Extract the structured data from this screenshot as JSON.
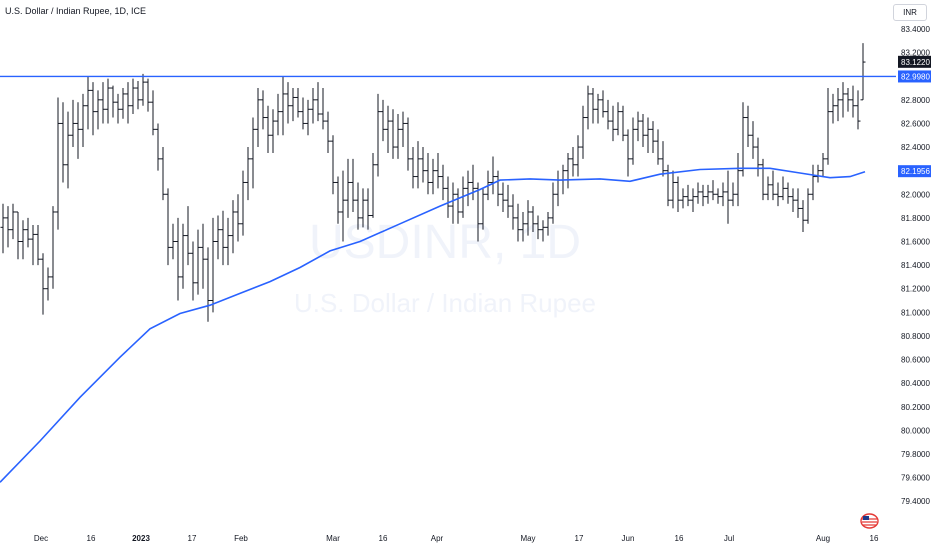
{
  "header": {
    "title": "U.S. Dollar / Indian Rupee, 1D, ICE"
  },
  "currency_button": "INR",
  "watermark": {
    "symbol": "USDINR, 1D",
    "name": "U.S. Dollar / Indian Rupee"
  },
  "colors": {
    "bars": "#131722",
    "ma_line": "#2962ff",
    "hline": "#2962ff",
    "axis_text": "#131722",
    "watermark": "#f0f3fa",
    "last_price_bg": "#131722",
    "level_bg": "#2962ff"
  },
  "chart_data": {
    "type": "ohlc",
    "title": "U.S. Dollar / Indian Rupee, 1D, ICE",
    "ylim": [
      79.3,
      83.4
    ],
    "y_ticks": [
      "83.4000",
      "83.2000",
      "82.8000",
      "82.6000",
      "82.4000",
      "82.2000",
      "82.0000",
      "81.8000",
      "81.6000",
      "81.4000",
      "81.2000",
      "81.0000",
      "80.8000",
      "80.6000",
      "80.4000",
      "80.2000",
      "80.0000",
      "79.8000",
      "79.6000",
      "79.4000"
    ],
    "x_ticks": [
      {
        "label": "Dec",
        "pos": 41
      },
      {
        "label": "16",
        "pos": 91
      },
      {
        "label": "2023",
        "pos": 141,
        "bold": true
      },
      {
        "label": "17",
        "pos": 192
      },
      {
        "label": "Feb",
        "pos": 241
      },
      {
        "label": "Mar",
        "pos": 333
      },
      {
        "label": "16",
        "pos": 383
      },
      {
        "label": "Apr",
        "pos": 437
      },
      {
        "label": "May",
        "pos": 528
      },
      {
        "label": "17",
        "pos": 579
      },
      {
        "label": "Jun",
        "pos": 628
      },
      {
        "label": "16",
        "pos": 679
      },
      {
        "label": "Jul",
        "pos": 729
      },
      {
        "label": "Aug",
        "pos": 823
      },
      {
        "label": "16",
        "pos": 874
      }
    ],
    "price_labels": [
      {
        "value": 83.122,
        "text": "83.1220",
        "style": "last"
      },
      {
        "value": 82.998,
        "text": "82.9980",
        "style": "level"
      },
      {
        "value": 82.1956,
        "text": "82.1956",
        "style": "ma"
      }
    ],
    "horizontal_level": 82.998,
    "ma_line": [
      [
        0,
        79.56
      ],
      [
        40,
        79.91
      ],
      [
        80,
        80.28
      ],
      [
        120,
        80.62
      ],
      [
        150,
        80.86
      ],
      [
        180,
        80.99
      ],
      [
        210,
        81.06
      ],
      [
        240,
        81.16
      ],
      [
        270,
        81.26
      ],
      [
        300,
        81.38
      ],
      [
        330,
        81.52
      ],
      [
        360,
        81.6
      ],
      [
        400,
        81.75
      ],
      [
        440,
        81.9
      ],
      [
        480,
        82.04
      ],
      [
        500,
        82.12
      ],
      [
        530,
        82.13
      ],
      [
        560,
        82.12
      ],
      [
        600,
        82.13
      ],
      [
        630,
        82.11
      ],
      [
        660,
        82.17
      ],
      [
        700,
        82.21
      ],
      [
        740,
        82.22
      ],
      [
        770,
        82.22
      ],
      [
        800,
        82.18
      ],
      [
        830,
        82.14
      ],
      [
        850,
        82.15
      ],
      [
        865,
        82.19
      ]
    ],
    "ohlc_bars": [
      [
        3,
        81.72,
        81.92,
        81.5,
        81.8
      ],
      [
        8,
        81.8,
        81.9,
        81.55,
        81.7
      ],
      [
        13,
        81.7,
        81.92,
        81.62,
        81.85
      ],
      [
        18,
        81.85,
        81.85,
        81.45,
        81.6
      ],
      [
        23,
        81.6,
        81.78,
        81.45,
        81.7
      ],
      [
        28,
        81.7,
        81.8,
        81.55,
        81.62
      ],
      [
        33,
        81.62,
        81.74,
        81.4,
        81.66
      ],
      [
        38,
        81.66,
        81.74,
        81.4,
        81.45
      ],
      [
        43,
        81.45,
        81.5,
        80.98,
        81.2
      ],
      [
        48,
        81.2,
        81.38,
        81.1,
        81.3
      ],
      [
        53,
        81.3,
        81.9,
        81.2,
        81.85
      ],
      [
        58,
        81.85,
        82.82,
        81.7,
        82.6
      ],
      [
        63,
        82.6,
        82.78,
        82.1,
        82.25
      ],
      [
        68,
        82.25,
        82.7,
        82.05,
        82.5
      ],
      [
        73,
        82.5,
        82.8,
        82.4,
        82.6
      ],
      [
        78,
        82.6,
        82.78,
        82.3,
        82.55
      ],
      [
        83,
        82.55,
        82.85,
        82.4,
        82.75
      ],
      [
        88,
        82.75,
        83.0,
        82.55,
        82.88
      ],
      [
        93,
        82.88,
        82.95,
        82.5,
        82.7
      ],
      [
        98,
        82.7,
        82.88,
        82.55,
        82.8
      ],
      [
        103,
        82.8,
        82.95,
        82.6,
        82.72
      ],
      [
        108,
        82.72,
        82.98,
        82.6,
        82.9
      ],
      [
        113,
        82.9,
        82.92,
        82.65,
        82.78
      ],
      [
        118,
        82.78,
        82.85,
        82.6,
        82.72
      ],
      [
        123,
        82.72,
        82.9,
        82.64,
        82.85
      ],
      [
        128,
        82.85,
        82.95,
        82.6,
        82.75
      ],
      [
        133,
        82.75,
        82.98,
        82.68,
        82.9
      ],
      [
        138,
        82.9,
        82.96,
        82.72,
        82.8
      ],
      [
        143,
        82.8,
        83.02,
        82.75,
        82.95
      ],
      [
        148,
        82.95,
        82.98,
        82.7,
        82.78
      ],
      [
        153,
        82.78,
        82.88,
        82.5,
        82.55
      ],
      [
        158,
        82.55,
        82.6,
        82.2,
        82.3
      ],
      [
        163,
        82.3,
        82.4,
        81.95,
        82.0
      ],
      [
        168,
        82.0,
        82.05,
        81.4,
        81.55
      ],
      [
        173,
        81.55,
        81.75,
        81.45,
        81.6
      ],
      [
        178,
        81.6,
        81.8,
        81.1,
        81.3
      ],
      [
        183,
        81.3,
        81.75,
        81.2,
        81.65
      ],
      [
        188,
        81.65,
        81.9,
        81.4,
        81.5
      ],
      [
        193,
        81.5,
        81.6,
        81.1,
        81.25
      ],
      [
        198,
        81.25,
        81.7,
        81.15,
        81.55
      ],
      [
        203,
        81.55,
        81.75,
        81.2,
        81.45
      ],
      [
        208,
        81.45,
        81.55,
        80.92,
        81.1
      ],
      [
        213,
        81.1,
        81.8,
        81.0,
        81.6
      ],
      [
        218,
        81.6,
        81.82,
        81.45,
        81.7
      ],
      [
        223,
        81.7,
        81.86,
        81.4,
        81.55
      ],
      [
        228,
        81.55,
        81.8,
        81.4,
        81.65
      ],
      [
        233,
        81.65,
        81.95,
        81.5,
        81.85
      ],
      [
        238,
        81.85,
        82.0,
        81.6,
        81.75
      ],
      [
        243,
        81.75,
        82.2,
        81.65,
        82.1
      ],
      [
        248,
        82.1,
        82.4,
        81.95,
        82.3
      ],
      [
        253,
        82.3,
        82.65,
        82.05,
        82.55
      ],
      [
        258,
        82.55,
        82.9,
        82.4,
        82.8
      ],
      [
        263,
        82.8,
        82.88,
        82.55,
        82.65
      ],
      [
        268,
        82.65,
        82.75,
        82.35,
        82.5
      ],
      [
        273,
        82.5,
        82.72,
        82.35,
        82.62
      ],
      [
        278,
        82.62,
        82.85,
        82.5,
        82.7
      ],
      [
        283,
        82.7,
        83.0,
        82.5,
        82.85
      ],
      [
        288,
        82.85,
        82.95,
        82.6,
        82.75
      ],
      [
        293,
        82.75,
        82.9,
        82.62,
        82.82
      ],
      [
        298,
        82.82,
        82.9,
        82.65,
        82.7
      ],
      [
        303,
        82.7,
        82.82,
        82.55,
        82.6
      ],
      [
        308,
        82.6,
        82.8,
        82.5,
        82.72
      ],
      [
        313,
        82.72,
        82.9,
        82.6,
        82.8
      ],
      [
        318,
        82.8,
        82.95,
        82.62,
        82.68
      ],
      [
        323,
        82.68,
        82.9,
        82.55,
        82.62
      ],
      [
        328,
        82.62,
        82.7,
        82.35,
        82.45
      ],
      [
        333,
        82.45,
        82.5,
        82.0,
        82.1
      ],
      [
        338,
        82.1,
        82.15,
        81.75,
        81.85
      ],
      [
        343,
        81.85,
        82.2,
        81.6,
        81.95
      ],
      [
        348,
        81.95,
        82.3,
        81.8,
        82.1
      ],
      [
        353,
        82.1,
        82.3,
        81.85,
        81.95
      ],
      [
        358,
        81.95,
        82.1,
        81.7,
        81.8
      ],
      [
        363,
        81.8,
        82.05,
        81.72,
        81.95
      ],
      [
        368,
        81.95,
        82.05,
        81.7,
        81.82
      ],
      [
        373,
        81.82,
        82.35,
        81.8,
        82.25
      ],
      [
        378,
        82.25,
        82.85,
        82.15,
        82.7
      ],
      [
        383,
        82.7,
        82.8,
        82.45,
        82.55
      ],
      [
        388,
        82.55,
        82.75,
        82.35,
        82.62
      ],
      [
        393,
        82.62,
        82.72,
        82.3,
        82.4
      ],
      [
        398,
        82.4,
        82.68,
        82.3,
        82.55
      ],
      [
        403,
        82.55,
        82.7,
        82.4,
        82.6
      ],
      [
        408,
        82.6,
        82.65,
        82.2,
        82.3
      ],
      [
        413,
        82.3,
        82.4,
        82.05,
        82.15
      ],
      [
        418,
        82.15,
        82.45,
        82.05,
        82.3
      ],
      [
        423,
        82.3,
        82.4,
        82.1,
        82.2
      ],
      [
        428,
        82.2,
        82.35,
        82.0,
        82.1
      ],
      [
        433,
        82.1,
        82.3,
        82.0,
        82.2
      ],
      [
        438,
        82.2,
        82.35,
        82.05,
        82.15
      ],
      [
        443,
        82.15,
        82.25,
        81.95,
        82.05
      ],
      [
        448,
        82.05,
        82.15,
        81.8,
        81.9
      ],
      [
        453,
        81.9,
        82.1,
        81.75,
        82.0
      ],
      [
        458,
        82.0,
        82.05,
        81.75,
        81.85
      ],
      [
        463,
        81.85,
        82.15,
        81.8,
        82.05
      ],
      [
        468,
        82.05,
        82.2,
        81.9,
        82.1
      ],
      [
        473,
        82.1,
        82.25,
        81.95,
        82.05
      ],
      [
        478,
        82.05,
        82.1,
        81.6,
        81.75
      ],
      [
        483,
        81.75,
        82.05,
        81.7,
        82.0
      ],
      [
        488,
        82.0,
        82.2,
        81.95,
        82.1
      ],
      [
        493,
        82.1,
        82.32,
        82.0,
        82.15
      ],
      [
        498,
        82.15,
        82.2,
        81.9,
        82.0
      ],
      [
        503,
        82.0,
        82.1,
        81.85,
        81.95
      ],
      [
        508,
        81.95,
        82.08,
        81.8,
        81.9
      ],
      [
        513,
        81.9,
        82.0,
        81.7,
        81.8
      ],
      [
        518,
        81.8,
        81.92,
        81.6,
        81.7
      ],
      [
        523,
        81.7,
        81.85,
        81.6,
        81.75
      ],
      [
        528,
        81.75,
        81.95,
        81.65,
        81.85
      ],
      [
        533,
        81.85,
        81.9,
        81.68,
        81.75
      ],
      [
        538,
        81.75,
        81.82,
        81.62,
        81.7
      ],
      [
        543,
        81.7,
        81.78,
        81.6,
        81.72
      ],
      [
        548,
        81.72,
        81.85,
        81.65,
        81.8
      ],
      [
        553,
        81.8,
        82.1,
        81.75,
        82.0
      ],
      [
        558,
        82.0,
        82.2,
        81.9,
        82.12
      ],
      [
        563,
        82.12,
        82.25,
        82.0,
        82.2
      ],
      [
        568,
        82.2,
        82.35,
        82.05,
        82.3
      ],
      [
        573,
        82.3,
        82.4,
        82.15,
        82.25
      ],
      [
        578,
        82.25,
        82.5,
        82.15,
        82.4
      ],
      [
        583,
        82.4,
        82.75,
        82.3,
        82.65
      ],
      [
        588,
        82.65,
        82.92,
        82.55,
        82.85
      ],
      [
        593,
        82.85,
        82.9,
        82.6,
        82.72
      ],
      [
        598,
        82.72,
        82.85,
        82.6,
        82.8
      ],
      [
        603,
        82.8,
        82.88,
        82.65,
        82.7
      ],
      [
        608,
        82.7,
        82.8,
        82.55,
        82.62
      ],
      [
        613,
        82.62,
        82.75,
        82.45,
        82.55
      ],
      [
        618,
        82.55,
        82.78,
        82.5,
        82.7
      ],
      [
        623,
        82.7,
        82.75,
        82.45,
        82.5
      ],
      [
        628,
        82.5,
        82.55,
        82.15,
        82.3
      ],
      [
        633,
        82.3,
        82.65,
        82.25,
        82.55
      ],
      [
        638,
        82.55,
        82.7,
        82.45,
        82.62
      ],
      [
        643,
        82.62,
        82.68,
        82.4,
        82.5
      ],
      [
        648,
        82.5,
        82.65,
        82.35,
        82.55
      ],
      [
        653,
        82.55,
        82.62,
        82.35,
        82.45
      ],
      [
        658,
        82.45,
        82.55,
        82.25,
        82.3
      ],
      [
        663,
        82.3,
        82.45,
        82.15,
        82.2
      ],
      [
        668,
        82.2,
        82.25,
        81.9,
        81.95
      ],
      [
        673,
        81.95,
        82.2,
        81.88,
        82.1
      ],
      [
        678,
        82.1,
        82.15,
        81.85,
        81.95
      ],
      [
        683,
        81.95,
        82.05,
        81.88,
        81.98
      ],
      [
        688,
        81.98,
        82.08,
        81.9,
        81.95
      ],
      [
        693,
        81.95,
        82.05,
        81.85,
        81.98
      ],
      [
        698,
        81.98,
        82.1,
        81.92,
        82.02
      ],
      [
        703,
        82.02,
        82.08,
        81.9,
        81.98
      ],
      [
        708,
        81.98,
        82.08,
        81.92,
        82.02
      ],
      [
        713,
        82.02,
        82.12,
        81.95,
        82.0
      ],
      [
        718,
        82.0,
        82.05,
        81.92,
        81.98
      ],
      [
        723,
        81.98,
        82.1,
        81.9,
        82.02
      ],
      [
        728,
        82.02,
        82.2,
        81.75,
        81.95
      ],
      [
        733,
        81.95,
        82.1,
        81.9,
        82.0
      ],
      [
        738,
        82.0,
        82.35,
        81.9,
        82.2
      ],
      [
        743,
        82.2,
        82.78,
        82.15,
        82.65
      ],
      [
        748,
        82.65,
        82.75,
        82.4,
        82.5
      ],
      [
        753,
        82.5,
        82.62,
        82.3,
        82.4
      ],
      [
        758,
        82.4,
        82.48,
        82.15,
        82.25
      ],
      [
        763,
        82.25,
        82.3,
        81.95,
        82.0
      ],
      [
        768,
        82.0,
        82.15,
        81.95,
        82.08
      ],
      [
        773,
        82.08,
        82.2,
        81.95,
        82.0
      ],
      [
        778,
        82.0,
        82.1,
        81.9,
        81.98
      ],
      [
        783,
        81.98,
        82.15,
        81.95,
        82.05
      ],
      [
        788,
        82.05,
        82.1,
        81.92,
        81.98
      ],
      [
        793,
        81.98,
        82.05,
        81.85,
        81.95
      ],
      [
        798,
        81.95,
        82.05,
        81.8,
        81.88
      ],
      [
        803,
        81.88,
        81.95,
        81.68,
        81.78
      ],
      [
        808,
        81.78,
        82.05,
        81.75,
        82.0
      ],
      [
        813,
        82.0,
        82.25,
        81.95,
        82.15
      ],
      [
        818,
        82.15,
        82.25,
        82.1,
        82.2
      ],
      [
        823,
        82.2,
        82.35,
        82.15,
        82.3
      ],
      [
        828,
        82.3,
        82.9,
        82.25,
        82.7
      ],
      [
        833,
        82.7,
        82.85,
        82.6,
        82.75
      ],
      [
        838,
        82.75,
        82.9,
        82.62,
        82.8
      ],
      [
        843,
        82.8,
        82.95,
        82.65,
        82.85
      ],
      [
        848,
        82.85,
        82.9,
        82.7,
        82.8
      ],
      [
        853,
        82.8,
        82.92,
        82.65,
        82.75
      ],
      [
        858,
        82.75,
        82.88,
        82.55,
        82.62
      ],
      [
        863,
        82.8,
        83.28,
        82.8,
        83.12
      ]
    ]
  }
}
